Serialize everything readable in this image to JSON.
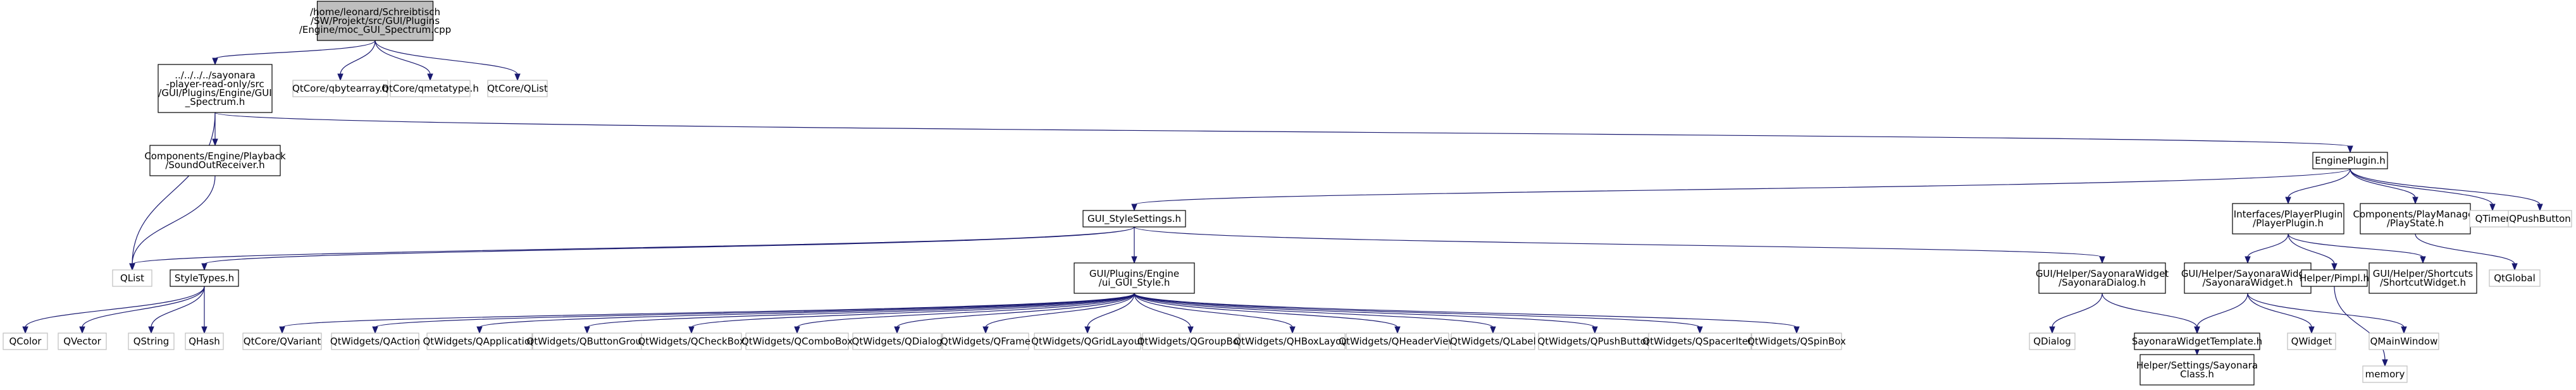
{
  "diagram": {
    "nodes": [
      {
        "id": "root",
        "kind": "root",
        "lines": [
          "/home/leonard/Schreibtisch",
          "/SW/Projekt/src/GUI/Plugins",
          "/Engine/moc_GUI_Spectrum.cpp"
        ]
      },
      {
        "id": "spectrum_h",
        "kind": "doc",
        "lines": [
          "../../../../sayonara",
          "-player-read-only/src",
          "/GUI/Plugins/Engine/GUI",
          "_Spectrum.h"
        ]
      },
      {
        "id": "qbytearray",
        "kind": "ext",
        "lines": [
          "QtCore/qbytearray.h"
        ]
      },
      {
        "id": "qmetatype",
        "kind": "ext",
        "lines": [
          "QtCore/qmetatype.h"
        ]
      },
      {
        "id": "qtcore_qlist",
        "kind": "ext",
        "lines": [
          "QtCore/QList"
        ]
      },
      {
        "id": "soundout",
        "kind": "doc",
        "lines": [
          "Components/Engine/Playback",
          "/SoundOutReceiver.h"
        ]
      },
      {
        "id": "engineplugin",
        "kind": "doc",
        "lines": [
          "EnginePlugin.h"
        ]
      },
      {
        "id": "gui_stylesettings",
        "kind": "doc",
        "lines": [
          "GUI_StyleSettings.h"
        ]
      },
      {
        "id": "qlist",
        "kind": "ext",
        "lines": [
          "QList"
        ]
      },
      {
        "id": "styletypes",
        "kind": "doc",
        "lines": [
          "StyleTypes.h"
        ]
      },
      {
        "id": "qcolor",
        "kind": "ext",
        "lines": [
          "QColor"
        ]
      },
      {
        "id": "qvector",
        "kind": "ext",
        "lines": [
          "QVector"
        ]
      },
      {
        "id": "qstring",
        "kind": "ext",
        "lines": [
          "QString"
        ]
      },
      {
        "id": "qhash",
        "kind": "ext",
        "lines": [
          "QHash"
        ]
      },
      {
        "id": "ui_gui_style",
        "kind": "doc",
        "lines": [
          "GUI/Plugins/Engine",
          "/ui_GUI_Style.h"
        ]
      },
      {
        "id": "qvariant",
        "kind": "ext",
        "lines": [
          "QtCore/QVariant"
        ]
      },
      {
        "id": "qaction",
        "kind": "ext",
        "lines": [
          "QtWidgets/QAction"
        ]
      },
      {
        "id": "qapplication",
        "kind": "ext",
        "lines": [
          "QtWidgets/QApplication"
        ]
      },
      {
        "id": "qbuttongroup",
        "kind": "ext",
        "lines": [
          "QtWidgets/QButtonGroup"
        ]
      },
      {
        "id": "qcheckbox",
        "kind": "ext",
        "lines": [
          "QtWidgets/QCheckBox"
        ]
      },
      {
        "id": "qcombobox",
        "kind": "ext",
        "lines": [
          "QtWidgets/QComboBox"
        ]
      },
      {
        "id": "qtw_qdialog",
        "kind": "ext",
        "lines": [
          "QtWidgets/QDialog"
        ]
      },
      {
        "id": "qframe",
        "kind": "ext",
        "lines": [
          "QtWidgets/QFrame"
        ]
      },
      {
        "id": "qgridlayout",
        "kind": "ext",
        "lines": [
          "QtWidgets/QGridLayout"
        ]
      },
      {
        "id": "qgroupbox",
        "kind": "ext",
        "lines": [
          "QtWidgets/QGroupBox"
        ]
      },
      {
        "id": "qhboxlayout",
        "kind": "ext",
        "lines": [
          "QtWidgets/QHBoxLayout"
        ]
      },
      {
        "id": "qheaderview",
        "kind": "ext",
        "lines": [
          "QtWidgets/QHeaderView"
        ]
      },
      {
        "id": "qlabel",
        "kind": "ext",
        "lines": [
          "QtWidgets/QLabel"
        ]
      },
      {
        "id": "qtw_qpushbutton",
        "kind": "ext",
        "lines": [
          "QtWidgets/QPushButton"
        ]
      },
      {
        "id": "qspaceritem",
        "kind": "ext",
        "lines": [
          "QtWidgets/QSpacerItem"
        ]
      },
      {
        "id": "qspinbox",
        "kind": "ext",
        "lines": [
          "QtWidgets/QSpinBox"
        ]
      },
      {
        "id": "sayonaradialog",
        "kind": "doc",
        "lines": [
          "GUI/Helper/SayonaraWidget",
          "/SayonaraDialog.h"
        ]
      },
      {
        "id": "qdialog",
        "kind": "ext",
        "lines": [
          "QDialog"
        ]
      },
      {
        "id": "sayonarawidgettemplate",
        "kind": "doc",
        "lines": [
          "SayonaraWidgetTemplate.h"
        ]
      },
      {
        "id": "sayonaraclass",
        "kind": "doc",
        "lines": [
          "Helper/Settings/Sayonara",
          "Class.h"
        ]
      },
      {
        "id": "playerplugin",
        "kind": "doc",
        "lines": [
          "Interfaces/PlayerPlugin",
          "/PlayerPlugin.h"
        ]
      },
      {
        "id": "playstate",
        "kind": "doc",
        "lines": [
          "Components/PlayManager",
          "/PlayState.h"
        ]
      },
      {
        "id": "qtimer",
        "kind": "ext",
        "lines": [
          "QTimer"
        ]
      },
      {
        "id": "qpushbutton",
        "kind": "ext",
        "lines": [
          "QPushButton"
        ]
      },
      {
        "id": "sayonarawidget",
        "kind": "doc",
        "lines": [
          "GUI/Helper/SayonaraWidget",
          "/SayonaraWidget.h"
        ]
      },
      {
        "id": "helperpimpl",
        "kind": "doc",
        "lines": [
          "Helper/Pimpl.h"
        ]
      },
      {
        "id": "shortcutwidget",
        "kind": "doc",
        "lines": [
          "GUI/Helper/Shortcuts",
          "/ShortcutWidget.h"
        ]
      },
      {
        "id": "qglobal",
        "kind": "ext",
        "lines": [
          "QtGlobal"
        ]
      },
      {
        "id": "qwidget",
        "kind": "ext",
        "lines": [
          "QWidget"
        ]
      },
      {
        "id": "qmainwindow",
        "kind": "ext",
        "lines": [
          "QMainWindow"
        ]
      },
      {
        "id": "memory",
        "kind": "ext",
        "lines": [
          "memory"
        ]
      }
    ],
    "edges": [
      [
        "root",
        "spectrum_h"
      ],
      [
        "root",
        "qbytearray"
      ],
      [
        "root",
        "qmetatype"
      ],
      [
        "root",
        "qtcore_qlist"
      ],
      [
        "spectrum_h",
        "soundout"
      ],
      [
        "spectrum_h",
        "engineplugin"
      ],
      [
        "spectrum_h",
        "qlist"
      ],
      [
        "soundout",
        "qlist"
      ],
      [
        "engineplugin",
        "gui_stylesettings"
      ],
      [
        "engineplugin",
        "playerplugin"
      ],
      [
        "engineplugin",
        "playstate"
      ],
      [
        "engineplugin",
        "qtimer"
      ],
      [
        "engineplugin",
        "qpushbutton"
      ],
      [
        "gui_stylesettings",
        "qlist"
      ],
      [
        "gui_stylesettings",
        "styletypes"
      ],
      [
        "gui_stylesettings",
        "ui_gui_style"
      ],
      [
        "gui_stylesettings",
        "sayonaradialog"
      ],
      [
        "styletypes",
        "qcolor"
      ],
      [
        "styletypes",
        "qvector"
      ],
      [
        "styletypes",
        "qstring"
      ],
      [
        "styletypes",
        "qhash"
      ],
      [
        "ui_gui_style",
        "qvariant"
      ],
      [
        "ui_gui_style",
        "qaction"
      ],
      [
        "ui_gui_style",
        "qapplication"
      ],
      [
        "ui_gui_style",
        "qbuttongroup"
      ],
      [
        "ui_gui_style",
        "qcheckbox"
      ],
      [
        "ui_gui_style",
        "qcombobox"
      ],
      [
        "ui_gui_style",
        "qtw_qdialog"
      ],
      [
        "ui_gui_style",
        "qframe"
      ],
      [
        "ui_gui_style",
        "qgridlayout"
      ],
      [
        "ui_gui_style",
        "qgroupbox"
      ],
      [
        "ui_gui_style",
        "qhboxlayout"
      ],
      [
        "ui_gui_style",
        "qheaderview"
      ],
      [
        "ui_gui_style",
        "qlabel"
      ],
      [
        "ui_gui_style",
        "qtw_qpushbutton"
      ],
      [
        "ui_gui_style",
        "qspaceritem"
      ],
      [
        "ui_gui_style",
        "qspinbox"
      ],
      [
        "sayonaradialog",
        "qdialog"
      ],
      [
        "sayonaradialog",
        "sayonarawidgettemplate"
      ],
      [
        "sayonarawidgettemplate",
        "sayonaraclass"
      ],
      [
        "playerplugin",
        "sayonarawidget"
      ],
      [
        "playerplugin",
        "helperpimpl"
      ],
      [
        "playerplugin",
        "shortcutwidget"
      ],
      [
        "playstate",
        "qglobal"
      ],
      [
        "sayonarawidget",
        "sayonarawidgettemplate"
      ],
      [
        "sayonarawidget",
        "qwidget"
      ],
      [
        "sayonarawidget",
        "qmainwindow"
      ],
      [
        "helperpimpl",
        "memory"
      ]
    ]
  }
}
